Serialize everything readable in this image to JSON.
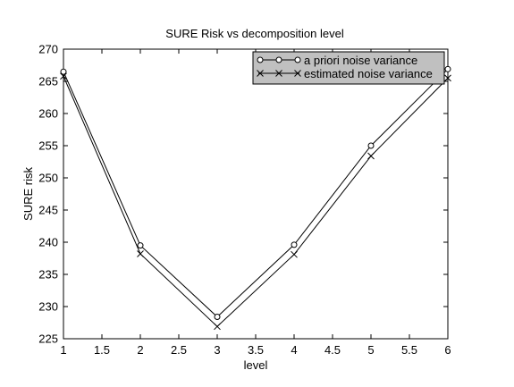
{
  "chart_data": {
    "type": "line",
    "title": "SURE Risk vs decomposition level",
    "xlabel": "level",
    "ylabel": "SURE risk",
    "xlim": [
      1,
      6
    ],
    "ylim": [
      225,
      270
    ],
    "xticks": [
      1,
      1.5,
      2,
      2.5,
      3,
      3.5,
      4,
      4.5,
      5,
      5.5,
      6
    ],
    "xtick_labels": [
      "1",
      "1.5",
      "2",
      "2.5",
      "3",
      "3.5",
      "4",
      "4.5",
      "5",
      "5.5",
      "6"
    ],
    "yticks": [
      225,
      230,
      235,
      240,
      245,
      250,
      255,
      260,
      265,
      270
    ],
    "ytick_labels": [
      "225",
      "230",
      "235",
      "240",
      "245",
      "250",
      "255",
      "260",
      "265",
      "270"
    ],
    "grid": false,
    "legend_position": "top-right",
    "x": [
      1,
      2,
      3,
      4,
      5,
      6
    ],
    "series": [
      {
        "name": "a priori noise variance",
        "marker": "circle",
        "color": "#000000",
        "values": [
          266.5,
          239.5,
          228.4,
          239.6,
          255.0,
          266.9
        ]
      },
      {
        "name": "estimated noise variance",
        "marker": "x",
        "color": "#000000",
        "values": [
          265.8,
          238.2,
          226.9,
          238.1,
          253.4,
          265.5
        ]
      }
    ],
    "legend_background": "#c0c0c0"
  }
}
